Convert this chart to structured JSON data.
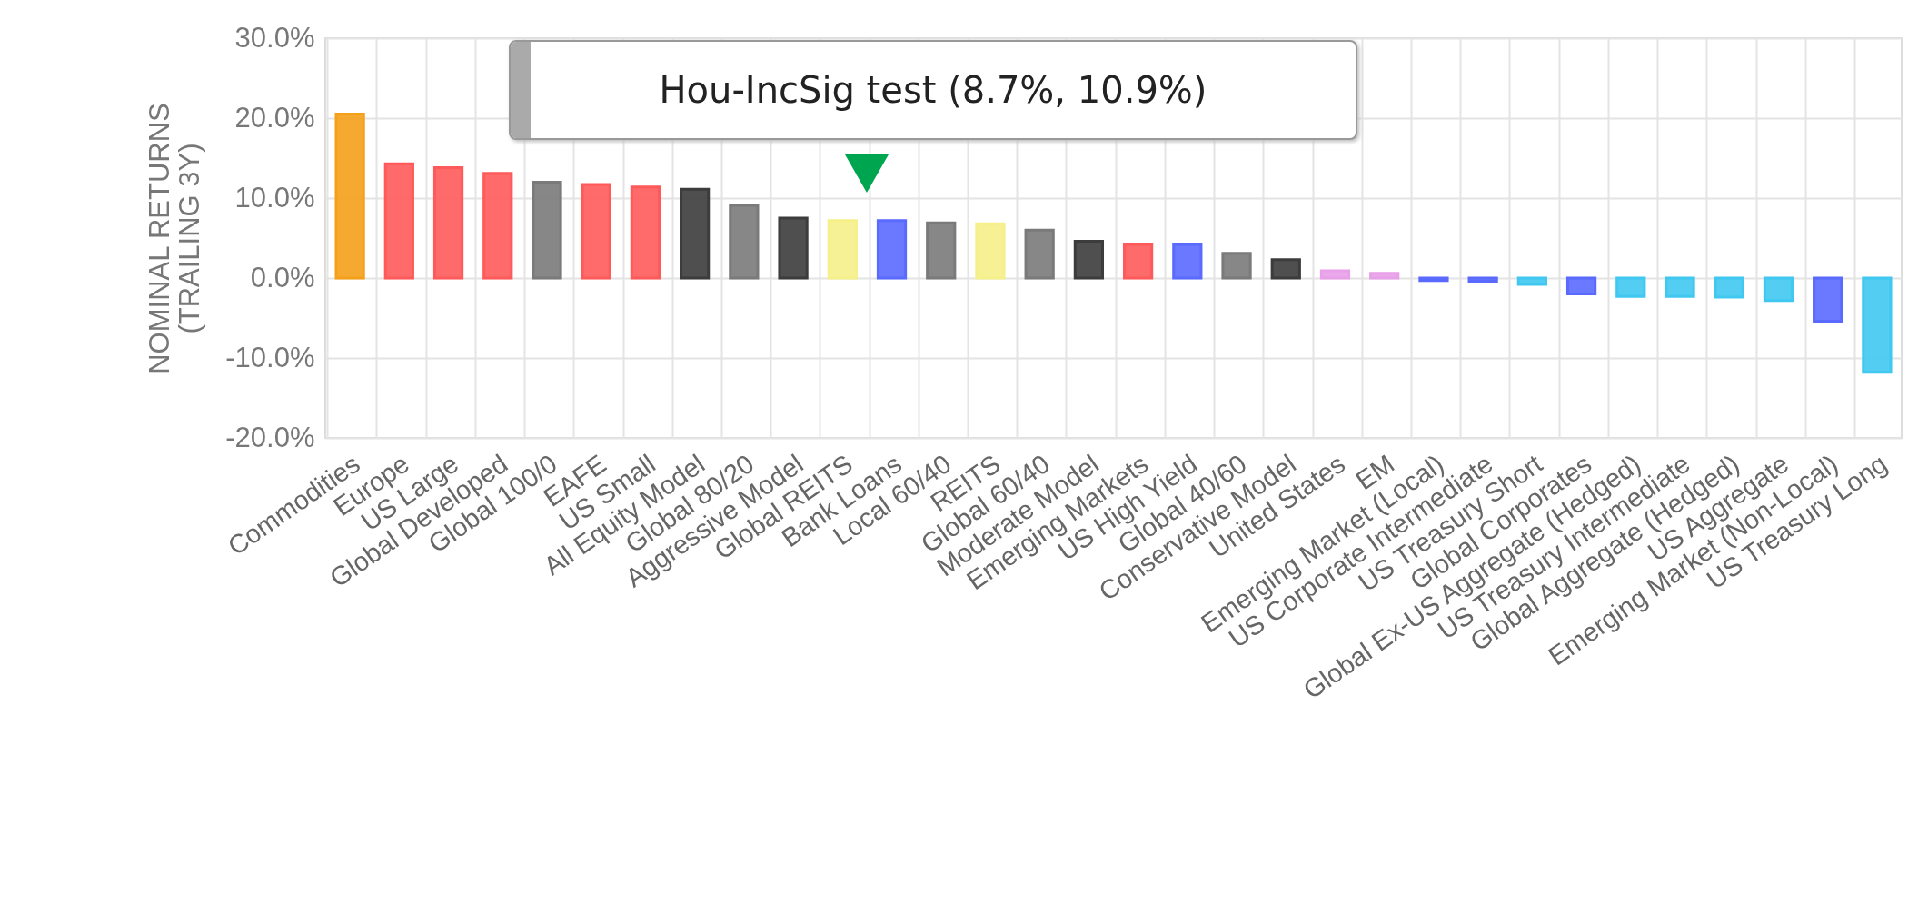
{
  "chart_data": {
    "type": "bar",
    "ylabel": "NOMINAL RETURNS\n(TRAILING 3Y)",
    "categories": [
      "Commodities",
      "Europe",
      "US Large",
      "Global Developed",
      "Global 100/0",
      "EAFE",
      "US Small",
      "All Equity Model",
      "Global 80/20",
      "Aggressive Model",
      "Global REITS",
      "Bank Loans",
      "Local 60/40",
      "REITS",
      "Global 60/40",
      "Moderate Model",
      "Emerging Markets",
      "US High Yield",
      "Global 40/60",
      "Conservative Model",
      "United States",
      "EM",
      "Emerging Market (Local)",
      "US Corporate Intermediate",
      "US Treasury Short",
      "Global Corporates",
      "Global Ex-US Aggregate (Hedged)",
      "US Treasury Intermediate",
      "Global Aggregate (Hedged)",
      "US Aggregate",
      "Emerging Market (Non-Local)",
      "US Treasury Long"
    ],
    "values": [
      20.5,
      14.3,
      13.8,
      13.1,
      12.0,
      11.7,
      11.4,
      11.1,
      9.1,
      7.5,
      7.2,
      7.2,
      6.9,
      6.8,
      6.0,
      4.6,
      4.2,
      4.2,
      3.1,
      2.3,
      0.9,
      0.6,
      -0.3,
      -0.4,
      -0.8,
      -2.0,
      -2.3,
      -2.3,
      -2.4,
      -2.8,
      -5.4,
      -11.8
    ],
    "colors": [
      "#f5a01a",
      "#ff5a5a",
      "#ff5a5a",
      "#ff5a5a",
      "#7a7a7a",
      "#ff5a5a",
      "#ff5a5a",
      "#3c3c3c",
      "#7a7a7a",
      "#3c3c3c",
      "#f5f08a",
      "#5a6aff",
      "#7a7a7a",
      "#f5f08a",
      "#7a7a7a",
      "#3c3c3c",
      "#ff5a5a",
      "#5a6aff",
      "#7a7a7a",
      "#3c3c3c",
      "#e8a0e8",
      "#e8a0e8",
      "#5a6aff",
      "#5a6aff",
      "#40c8f0",
      "#5a6aff",
      "#40c8f0",
      "#40c8f0",
      "#40c8f0",
      "#40c8f0",
      "#5a6aff",
      "#40c8f0"
    ],
    "ylim": [
      -20,
      30
    ],
    "yticks": [
      {
        "value": -20,
        "label": "-20.0%"
      },
      {
        "value": -10,
        "label": "-10.0%"
      },
      {
        "value": 0,
        "label": "0.0%"
      },
      {
        "value": 10,
        "label": "10.0%"
      },
      {
        "value": 20,
        "label": "20.0%"
      },
      {
        "value": 30,
        "label": "30.0%"
      }
    ],
    "grid": true,
    "annotations": [
      "Hou-IncSig test (8.7%, 10.9%)"
    ]
  }
}
